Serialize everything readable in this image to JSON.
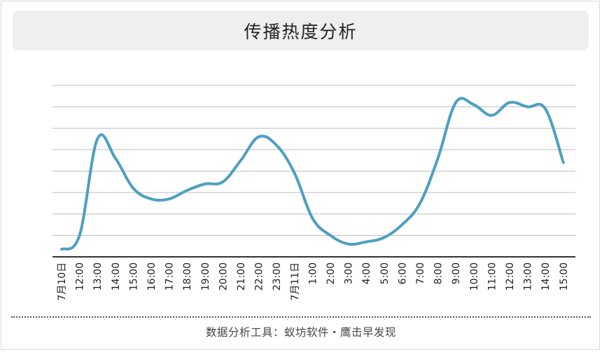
{
  "chart_data": {
    "type": "line",
    "title": "传播热度分析",
    "xlabel": "",
    "ylabel": "",
    "grid": true,
    "legend": "none",
    "line_color": "#4e9fc0",
    "categories": [
      "7月10日",
      "12:00",
      "13:00",
      "14:00",
      "15:00",
      "16:00",
      "17:00",
      "18:00",
      "19:00",
      "20:00",
      "21:00",
      "22:00",
      "23:00",
      "7月11日",
      "1:00",
      "2:00",
      "3:00",
      "4:00",
      "5:00",
      "6:00",
      "7:00",
      "8:00",
      "9:00",
      "10:00",
      "11:00",
      "12:00",
      "13:00",
      "14:00",
      "15:00"
    ],
    "series": [
      {
        "values": [
          0.35,
          1.0,
          5.5,
          4.6,
          3.2,
          2.7,
          2.7,
          3.1,
          3.4,
          3.5,
          4.5,
          5.6,
          5.2,
          3.9,
          1.8,
          1.0,
          0.6,
          0.7,
          0.9,
          1.5,
          2.5,
          4.6,
          7.2,
          7.1,
          6.6,
          7.2,
          7.0,
          6.9,
          4.4
        ]
      }
    ],
    "ylim": [
      0,
      8
    ]
  },
  "footer": {
    "text": "数据分析工具：蚁坊软件・鹰击早发现"
  }
}
